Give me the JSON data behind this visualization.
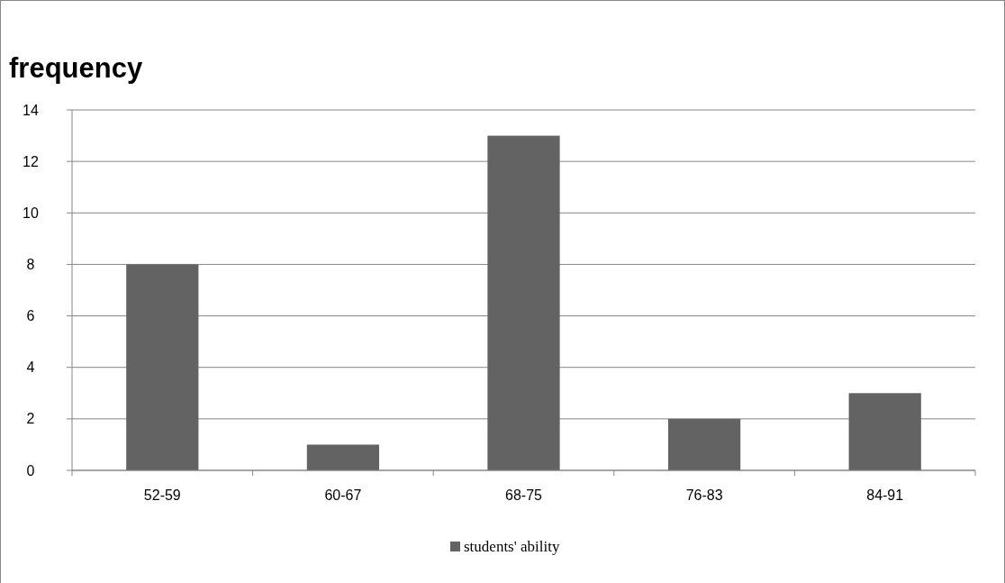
{
  "chart_data": {
    "type": "bar",
    "title": "frequency",
    "categories": [
      "52-59",
      "60-67",
      "68-75",
      "76-83",
      "84-91"
    ],
    "series": [
      {
        "name": "students' ability",
        "color": "#636363",
        "values": [
          8,
          1,
          13,
          2,
          3
        ]
      }
    ],
    "ylim": [
      0,
      14
    ],
    "yticks": [
      0,
      2,
      4,
      6,
      8,
      10,
      12,
      14
    ],
    "grid": "y",
    "legend": "bottom"
  }
}
